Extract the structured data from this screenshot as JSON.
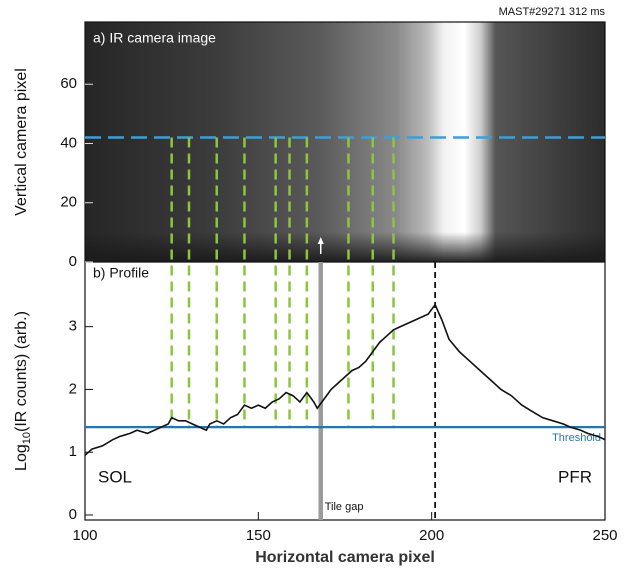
{
  "chart_data": [
    {
      "type": "image",
      "title": "a) IR camera image",
      "header": "MAST#29271 312 ms",
      "ylabel": "Vertical camera pixel",
      "xlim": [
        100,
        250
      ],
      "ylim": [
        0,
        81
      ],
      "yticks": [
        0,
        20,
        40,
        60
      ],
      "cut_row": 42,
      "cut_color": "#3aa0d8"
    },
    {
      "type": "line",
      "title": "b) Profile",
      "xlabel": "Horizontal camera pixel",
      "ylabel": {
        "base": "Log",
        "sub": "10",
        "rest": "(IR counts) (arb.)"
      },
      "xlim": [
        100,
        250
      ],
      "ylim": [
        -0.08,
        4.03
      ],
      "xticks": [
        100,
        150,
        200,
        250
      ],
      "yticks": [
        0,
        1,
        2,
        3
      ],
      "x": [
        100,
        102,
        105,
        108,
        110,
        113,
        115,
        118,
        120,
        122,
        124,
        125,
        127,
        129,
        131,
        133,
        135,
        136,
        138,
        140,
        142,
        144,
        146,
        148,
        150,
        152,
        154,
        156,
        158,
        160,
        162,
        164,
        166,
        167,
        169,
        171,
        173,
        175,
        177,
        179,
        181,
        183,
        185,
        187,
        189,
        191,
        193,
        195,
        197,
        199,
        201,
        203,
        205,
        208,
        211,
        214,
        217,
        220,
        223,
        226,
        229,
        232,
        235,
        238,
        240,
        243,
        245,
        248,
        250
      ],
      "series": [
        {
          "color": "#111111",
          "values": [
            0.95,
            1.05,
            1.1,
            1.2,
            1.25,
            1.3,
            1.35,
            1.3,
            1.35,
            1.4,
            1.45,
            1.55,
            1.5,
            1.5,
            1.45,
            1.4,
            1.35,
            1.45,
            1.5,
            1.45,
            1.55,
            1.6,
            1.75,
            1.7,
            1.75,
            1.7,
            1.8,
            1.85,
            1.95,
            1.9,
            1.8,
            1.95,
            1.8,
            1.7,
            1.85,
            2.0,
            2.1,
            2.2,
            2.3,
            2.35,
            2.45,
            2.6,
            2.75,
            2.85,
            2.95,
            3.0,
            3.05,
            3.1,
            3.15,
            3.2,
            3.35,
            3.1,
            2.8,
            2.6,
            2.45,
            2.3,
            2.15,
            2.0,
            1.9,
            1.75,
            1.65,
            1.55,
            1.5,
            1.45,
            1.4,
            1.35,
            1.3,
            1.25,
            1.2
          ]
        }
      ],
      "threshold": {
        "value": 1.4,
        "label": "Threshold",
        "color": "#1f78b4"
      },
      "tile_gap": {
        "value": 168,
        "label": "Tile gap",
        "color": "#9a9a9a"
      },
      "peak_x": 201,
      "segments": {
        "color": "#8cc63f",
        "values": [
          125,
          130,
          138,
          146,
          155,
          159,
          164,
          176,
          183,
          189
        ]
      },
      "left_label": "SOL",
      "right_label": "PFR"
    }
  ]
}
